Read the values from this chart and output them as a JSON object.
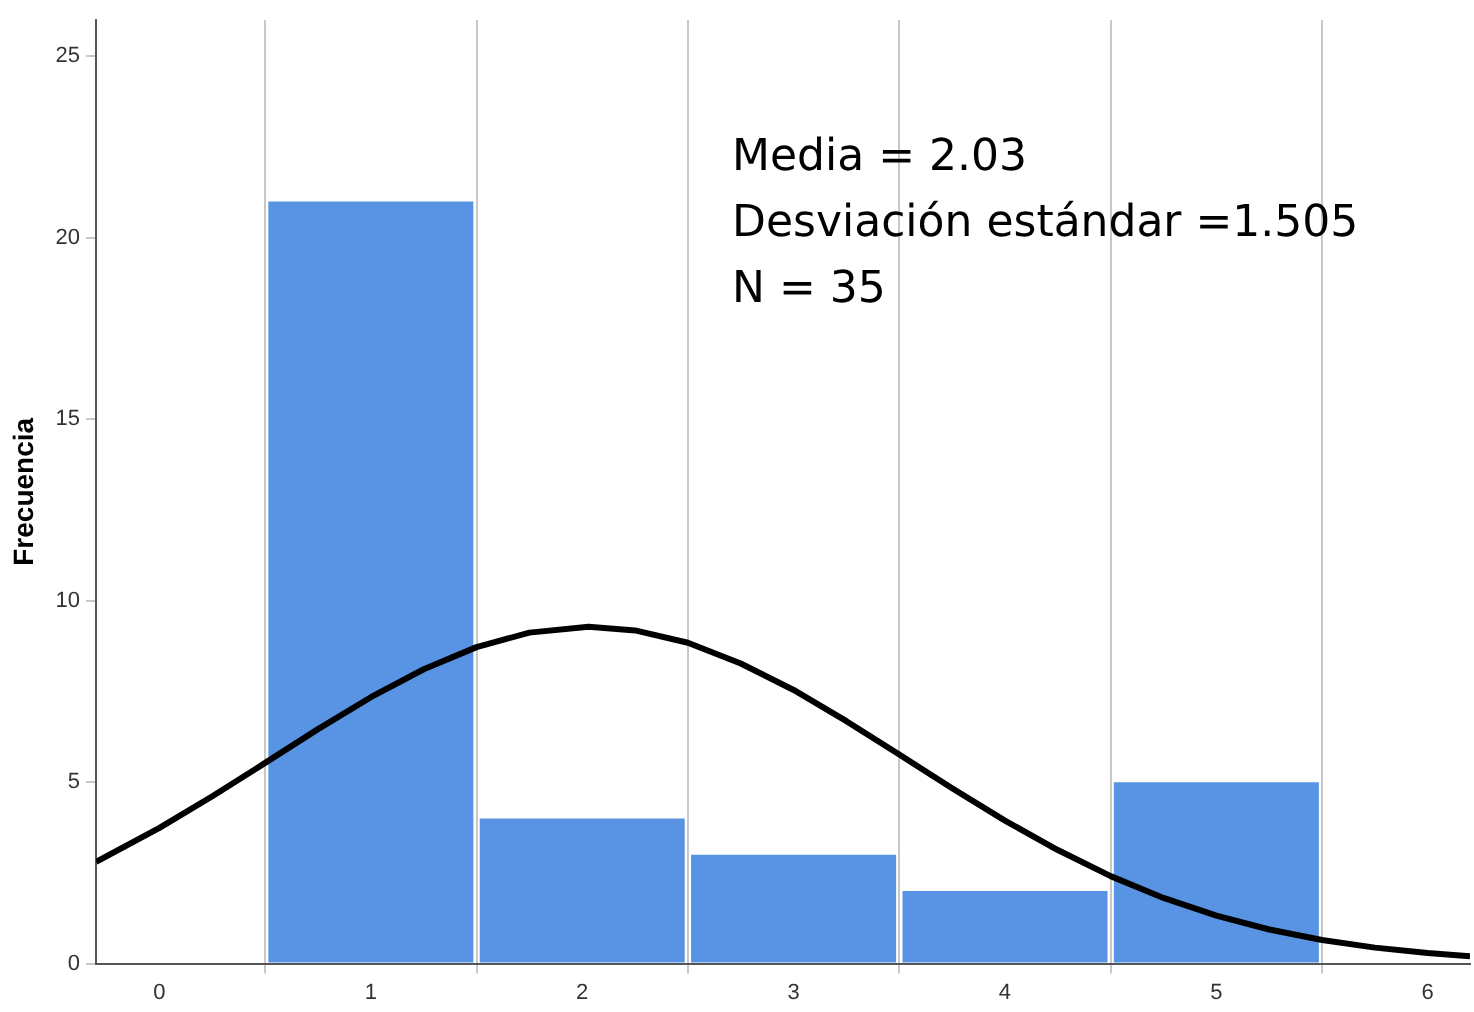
{
  "chart_data": {
    "type": "histogram",
    "ylabel": "Frecuencia",
    "bins": [
      0.5,
      1.5,
      2.5,
      3.5,
      4.5,
      5.5
    ],
    "values": [
      21,
      4,
      3,
      2,
      5
    ],
    "color": "#5894e3",
    "series": [
      {
        "type": "line",
        "color": "#000000",
        "x": [
          -0.3,
          0,
          0.25,
          0.5,
          0.75,
          1,
          1.25,
          1.5,
          1.75,
          2.03,
          2.25,
          2.5,
          2.75,
          3,
          3.25,
          3.5,
          3.75,
          4,
          4.25,
          4.5,
          4.75,
          5,
          5.25,
          5.5,
          5.75,
          6,
          6.2
        ],
        "values": [
          2.8,
          3.74,
          4.61,
          5.53,
          6.46,
          7.34,
          8.11,
          8.72,
          9.12,
          9.28,
          9.18,
          8.84,
          8.27,
          7.54,
          6.68,
          5.76,
          4.83,
          3.94,
          3.13,
          2.41,
          1.81,
          1.32,
          0.94,
          0.65,
          0.44,
          0.29,
          0.2
        ]
      }
    ],
    "xlim": [
      -0.3,
      6.2
    ],
    "xticks": [
      0,
      1,
      2,
      3,
      4,
      5,
      6
    ],
    "ylim": [
      0,
      26
    ],
    "yticks": [
      0,
      5,
      10,
      15,
      20,
      25
    ],
    "grid": "x",
    "legend": false,
    "marker": "none",
    "line_style": "solid",
    "annotations": [
      "Media = 2.03",
      "Desviación estándar =1.505",
      "N = 35"
    ]
  }
}
